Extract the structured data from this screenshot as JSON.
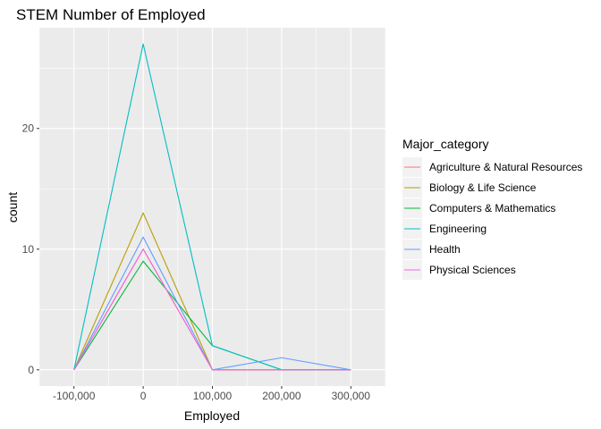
{
  "chart_data": {
    "type": "line",
    "title": "STEM Number of Employed",
    "xlabel": "Employed",
    "ylabel": "count",
    "x": [
      -100000,
      0,
      100000,
      200000,
      300000
    ],
    "x_tick_values": [
      -100000,
      0,
      100000,
      200000,
      300000
    ],
    "x_tick_labels": [
      "-100,000",
      "0",
      "100,000",
      "200,000",
      "300,000"
    ],
    "xlim": [
      -150000,
      350000
    ],
    "y_tick_values": [
      0,
      10,
      20
    ],
    "y_tick_labels": [
      "0",
      "10",
      "20"
    ],
    "ylim": [
      -1.35,
      28.35
    ],
    "grid": true,
    "legend_title": "Major_category",
    "legend_position": "right",
    "series": [
      {
        "name": "Agriculture & Natural Resources",
        "color": "#F8766D",
        "values": [
          0,
          10,
          0,
          0,
          0
        ]
      },
      {
        "name": "Biology & Life Science",
        "color": "#B79F00",
        "values": [
          0,
          13,
          0,
          0,
          0
        ]
      },
      {
        "name": "Computers & Mathematics",
        "color": "#00BA38",
        "values": [
          0,
          9,
          2,
          0,
          0
        ]
      },
      {
        "name": "Engineering",
        "color": "#00BFC4",
        "values": [
          0,
          27,
          2,
          0,
          0
        ]
      },
      {
        "name": "Health",
        "color": "#619CFF",
        "values": [
          0,
          11,
          0,
          1,
          0
        ]
      },
      {
        "name": "Physical Sciences",
        "color": "#F564E3",
        "values": [
          0,
          10,
          0,
          0,
          0
        ]
      }
    ]
  }
}
